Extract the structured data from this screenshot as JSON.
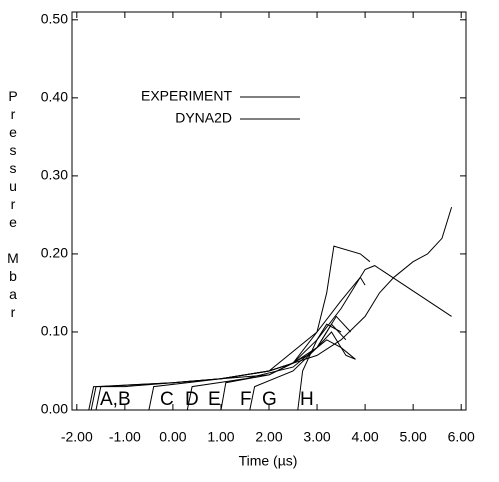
{
  "chart_data": {
    "type": "line",
    "x_label": "Time (µs)",
    "y_label": "Pressure Mbar",
    "xlim": [
      -2.1,
      6.1
    ],
    "ylim": [
      0,
      0.51
    ],
    "xticks": [
      {
        "value": -2,
        "label": "-2.00"
      },
      {
        "value": -1,
        "label": "-1.00"
      },
      {
        "value": 0,
        "label": "0.00"
      },
      {
        "value": 1,
        "label": "1.00"
      },
      {
        "value": 2,
        "label": "2.00"
      },
      {
        "value": 3,
        "label": "3.00"
      },
      {
        "value": 4,
        "label": "4.00"
      },
      {
        "value": 5,
        "label": "5.00"
      },
      {
        "value": 6,
        "label": "6.00"
      }
    ],
    "yticks": [
      {
        "value": 0,
        "label": "0.00"
      },
      {
        "value": 0.1,
        "label": "0.10"
      },
      {
        "value": 0.2,
        "label": "0.20"
      },
      {
        "value": 0.3,
        "label": "0.30"
      },
      {
        "value": 0.4,
        "label": "0.40"
      },
      {
        "value": 0.5,
        "label": "0.50"
      }
    ],
    "annotations": [
      "A,B",
      "C",
      "D",
      "E",
      "F",
      "G",
      "H"
    ],
    "series": [
      {
        "name": "EXPERIMENT",
        "color": "#000000",
        "lines": [
          {
            "x": [
              -1.75,
              -1.65,
              -1.0,
              0,
              1.0,
              2.0,
              2.5,
              3.0,
              3.3,
              3.6,
              3.8
            ],
            "values": [
              0,
              0.03,
              0.03,
              0.035,
              0.04,
              0.05,
              0.06,
              0.08,
              0.1,
              0.07,
              0.065
            ]
          },
          {
            "x": [
              1.0,
              1.5,
              2,
              2.5,
              3,
              3.5,
              4.0,
              4.3,
              4.6,
              5.0,
              5.3,
              5.6,
              5.8
            ],
            "values": [
              0.04,
              0.045,
              0.05,
              0.06,
              0.07,
              0.09,
              0.12,
              0.15,
              0.17,
              0.19,
              0.2,
              0.22,
              0.26
            ]
          },
          {
            "x": [
              -1.6,
              -1.5,
              0,
              1,
              2,
              2.5,
              3.0,
              3.2,
              3.35,
              3.9,
              4.1
            ],
            "values": [
              0,
              0.03,
              0.035,
              0.04,
              0.05,
              0.06,
              0.1,
              0.15,
              0.21,
              0.2,
              0.19
            ]
          },
          {
            "x": [
              1.0,
              1.1,
              2,
              2.8,
              3.2,
              3.5,
              3.8
            ],
            "values": [
              0,
              0.035,
              0.045,
              0.07,
              0.09,
              0.08,
              0.065
            ]
          },
          {
            "x": [
              1.6,
              1.7,
              2.5,
              3.0,
              3.3,
              3.6
            ],
            "values": [
              0,
              0.03,
              0.05,
              0.08,
              0.11,
              0.09
            ]
          },
          {
            "x": [
              2.6,
              2.7,
              3.0,
              3.2,
              3.5
            ],
            "values": [
              0,
              0.05,
              0.09,
              0.11,
              0.1
            ]
          },
          {
            "x": [
              0.3,
              0.4,
              1.5,
              2.5,
              3.0,
              3.4,
              3.7
            ],
            "values": [
              0,
              0.03,
              0.04,
              0.055,
              0.08,
              0.12,
              0.1
            ]
          }
        ]
      },
      {
        "name": "DYNA2D",
        "color": "#000000",
        "lines": [
          {
            "x": [
              -1.7,
              -1.6,
              0,
              1,
              2,
              2.5,
              3.0,
              3.5,
              4.0,
              4.2,
              5.8
            ],
            "values": [
              0,
              0.03,
              0.035,
              0.04,
              0.045,
              0.06,
              0.09,
              0.13,
              0.18,
              0.185,
              0.12
            ]
          },
          {
            "x": [
              -0.5,
              -0.4,
              1,
              2,
              3.0,
              3.5,
              3.9,
              4.0
            ],
            "values": [
              0,
              0.03,
              0.04,
              0.05,
              0.1,
              0.14,
              0.17,
              0.16
            ]
          }
        ]
      }
    ]
  }
}
